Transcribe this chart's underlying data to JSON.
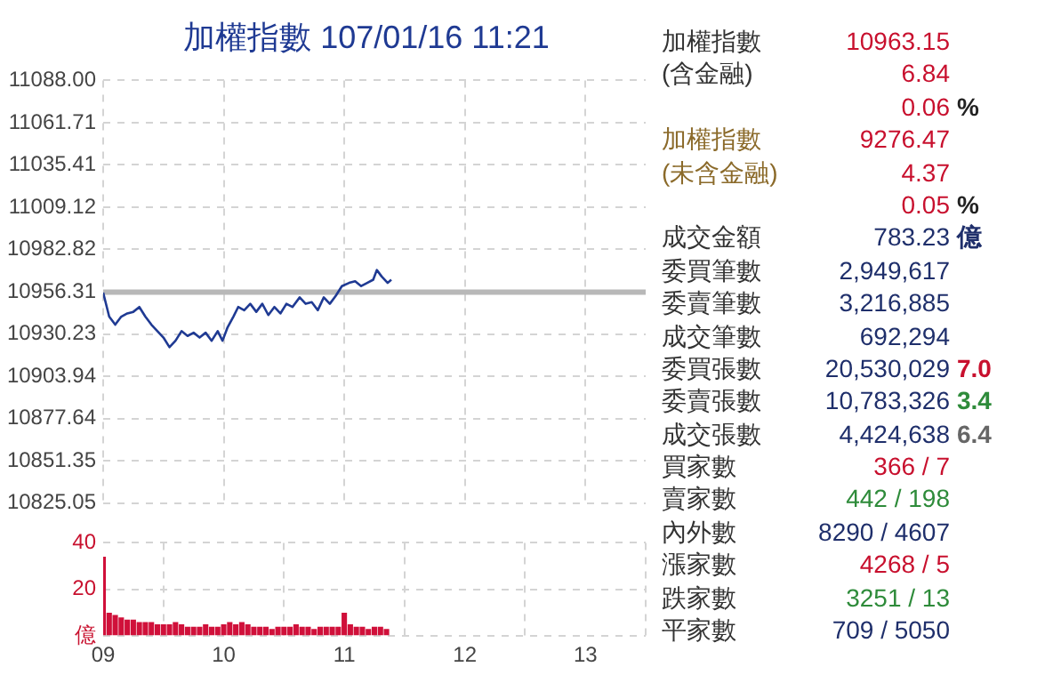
{
  "chart_data": [
    {
      "type": "line",
      "title": "加權指數 107/01/16 11:21",
      "x": [
        9.0,
        9.05,
        9.1,
        9.15,
        9.2,
        9.25,
        9.3,
        9.35,
        9.4,
        9.45,
        9.5,
        9.55,
        9.6,
        9.65,
        9.7,
        9.75,
        9.8,
        9.85,
        9.9,
        9.95,
        9.99,
        10.03,
        10.08,
        10.12,
        10.17,
        10.22,
        10.27,
        10.32,
        10.37,
        10.42,
        10.47,
        10.52,
        10.57,
        10.63,
        10.68,
        10.73,
        10.78,
        10.83,
        10.88,
        10.93,
        10.98,
        11.04,
        11.09,
        11.14,
        11.19,
        11.24,
        11.27,
        11.31,
        11.36,
        11.39
      ],
      "series": [
        {
          "color": "#1f3a93",
          "values": [
            10956,
            10941,
            10936,
            10941,
            10943,
            10944,
            10947,
            10941,
            10936,
            10932,
            10928,
            10922,
            10926,
            10932,
            10929,
            10931,
            10928,
            10931,
            10926,
            10932,
            10926,
            10934,
            10941,
            10947,
            10945,
            10949,
            10944,
            10949,
            10942,
            10947,
            10943,
            10949,
            10947,
            10953,
            10949,
            10950,
            10945,
            10953,
            10949,
            10954,
            10960,
            10962,
            10963,
            10960,
            10962,
            10964,
            10970,
            10966,
            10962,
            10964
          ]
        }
      ],
      "xlim": [
        9,
        13.5
      ],
      "xticks": [
        {
          "value": 9,
          "label": null
        },
        {
          "value": 10,
          "label": null
        },
        {
          "value": 11,
          "label": null
        },
        {
          "value": 12,
          "label": null
        },
        {
          "value": 13,
          "label": null
        }
      ],
      "ylim": [
        10825.05,
        11088.0
      ],
      "yticks": [
        {
          "value": 10825.05,
          "label": "10825.05"
        },
        {
          "value": 10851.35,
          "label": "10851.35"
        },
        {
          "value": 10877.64,
          "label": "10877.64"
        },
        {
          "value": 10903.94,
          "label": "10903.94"
        },
        {
          "value": 10930.23,
          "label": "10930.23"
        },
        {
          "value": 10956.31,
          "label": "10956.31"
        },
        {
          "value": 10982.82,
          "label": "10982.82"
        },
        {
          "value": 11009.12,
          "label": "11009.12"
        },
        {
          "value": 11035.41,
          "label": "11035.41"
        },
        {
          "value": 11061.71,
          "label": "11061.71"
        },
        {
          "value": 11088.0,
          "label": "11088.00"
        }
      ],
      "ref_lines": [
        {
          "axis": "y",
          "value": 10956.31,
          "color": "#b8b8b8"
        }
      ],
      "grid": true,
      "legend": false,
      "marker": "none",
      "line_style": "solid",
      "tick_labels": "y"
    },
    {
      "type": "bar",
      "x": [
        9.0,
        9.05,
        9.1,
        9.15,
        9.2,
        9.25,
        9.3,
        9.35,
        9.4,
        9.45,
        9.5,
        9.55,
        9.6,
        9.65,
        9.7,
        9.75,
        9.8,
        9.85,
        9.9,
        9.95,
        10.0,
        10.05,
        10.1,
        10.15,
        10.2,
        10.25,
        10.3,
        10.35,
        10.4,
        10.45,
        10.5,
        10.55,
        10.6,
        10.65,
        10.7,
        10.75,
        10.8,
        10.85,
        10.9,
        10.95,
        11.0,
        11.05,
        11.1,
        11.15,
        11.2,
        11.25,
        11.3,
        11.35
      ],
      "series": [
        {
          "color": "#d0103a",
          "values": [
            34,
            10,
            9,
            8,
            7,
            7,
            6,
            6,
            6,
            5,
            5,
            5,
            6,
            5,
            4,
            4,
            4,
            5,
            4,
            4,
            5,
            6,
            5,
            6,
            5,
            4,
            4,
            4,
            3,
            4,
            4,
            4,
            5,
            4,
            4,
            3,
            4,
            4,
            4,
            4,
            10,
            5,
            4,
            4,
            3,
            4,
            4,
            3
          ]
        }
      ],
      "xlim": [
        9,
        13.5
      ],
      "xticks": [
        {
          "value": 9,
          "label": "09"
        },
        10,
        11,
        12,
        13
      ],
      "ylim": [
        0,
        40
      ],
      "yticks": [
        {
          "value": 0,
          "label": "億"
        },
        20,
        40
      ],
      "grid": true,
      "legend": false
    },
    {
      "type": "other",
      "cell_labels": [
        [
          "加權指數",
          "10963.15",
          null
        ],
        [
          "(含金融)",
          "6.84",
          null
        ],
        [
          null,
          "0.06",
          "%"
        ],
        [
          "加權指數",
          "9276.47",
          null
        ],
        [
          "(未含金融)",
          "4.37",
          null
        ],
        [
          null,
          "0.05",
          "%"
        ],
        [
          "成交金額",
          "783.23",
          "億"
        ],
        [
          "委買筆數",
          "2,949,617",
          null
        ],
        [
          "委賣筆數",
          "3,216,885",
          null
        ],
        [
          "成交筆數",
          "692,294",
          null
        ],
        [
          "委買張數",
          "20,530,029",
          "7.0"
        ],
        [
          "委賣張數",
          "10,783,326",
          "3.4"
        ],
        [
          "成交張數",
          "4,424,638",
          "6.4"
        ],
        [
          "買家數",
          "366 / 7",
          null
        ],
        [
          "賣家數",
          "442 / 198",
          null
        ],
        [
          "內外數",
          "8290 / 4607",
          null
        ],
        [
          "漲家數",
          "4268 / 5",
          null
        ],
        [
          "跌家數",
          "3251 / 13",
          null
        ],
        [
          "平家數",
          "709 / 5050",
          null
        ]
      ],
      "colors": [
        [
          "#333333",
          "#c8102e",
          null
        ],
        [
          "#333333",
          "#c8102e",
          null
        ],
        [
          null,
          "#c8102e",
          "#222222"
        ],
        [
          "#8b6a2a",
          "#c8102e",
          null
        ],
        [
          "#8b6a2a",
          "#c8102e",
          null
        ],
        [
          null,
          "#c8102e",
          "#222222"
        ],
        [
          "#333333",
          "#1f2f6b",
          "#1f2f6b"
        ],
        [
          "#333333",
          "#1f2f6b",
          null
        ],
        [
          "#333333",
          "#1f2f6b",
          null
        ],
        [
          "#333333",
          "#1f2f6b",
          null
        ],
        [
          "#333333",
          "#1f2f6b",
          "#c8102e"
        ],
        [
          "#333333",
          "#1f2f6b",
          "#2e8b3a"
        ],
        [
          "#333333",
          "#1f2f6b",
          "#666666"
        ],
        [
          "#333333",
          "#c8102e",
          null
        ],
        [
          "#333333",
          "#2e8b3a",
          null
        ],
        [
          "#333333",
          "#1f2f6b",
          null
        ],
        [
          "#333333",
          "#c8102e",
          null
        ],
        [
          "#333333",
          "#2e8b3a",
          null
        ],
        [
          "#333333",
          "#1f2f6b",
          null
        ]
      ]
    }
  ]
}
